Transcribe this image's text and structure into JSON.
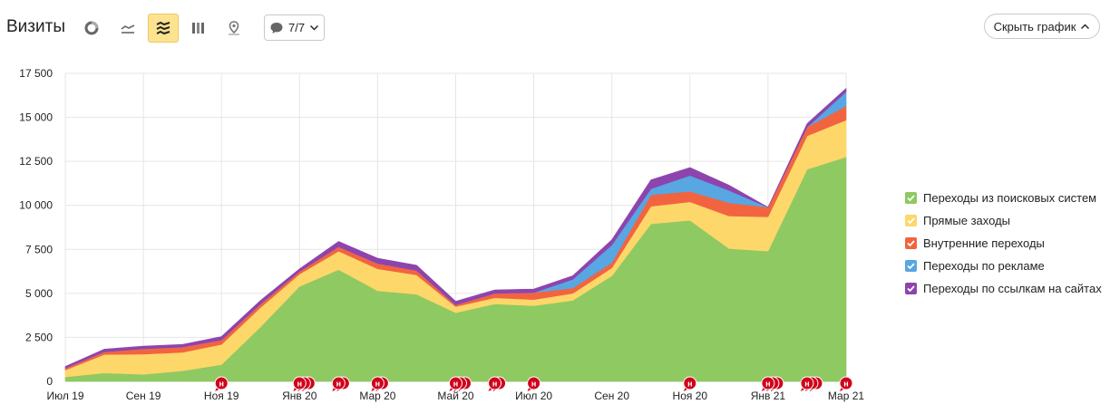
{
  "header": {
    "title": "Визиты",
    "counter_label": "7/7",
    "hide_label": "Скрыть график",
    "tools": [
      {
        "icon": "pie-chart-icon",
        "active": false
      },
      {
        "icon": "line-chart-icon",
        "active": false
      },
      {
        "icon": "area-chart-icon",
        "active": true
      },
      {
        "icon": "bar-chart-icon",
        "active": false
      },
      {
        "icon": "map-icon",
        "active": false
      }
    ]
  },
  "colors": {
    "accent_bg": "#fde28f",
    "grid": "#e6e6e6",
    "marker": "#d0021b"
  },
  "chart_data": {
    "type": "area",
    "stacked": true,
    "x": [
      "Июл 19",
      "Авг 19",
      "Сен 19",
      "Окт 19",
      "Ноя 19",
      "Дек 19",
      "Янв 20",
      "Фев 20",
      "Мар 20",
      "Апр 20",
      "Май 20",
      "Июн 20",
      "Июл 20",
      "Авг 20",
      "Сен 20",
      "Окт 20",
      "Ноя 20",
      "Дек 20",
      "Янв 21",
      "Фев 21",
      "Мар 21"
    ],
    "x_tick_labels": [
      "Июл 19",
      "Сен 19",
      "Ноя 19",
      "Янв 20",
      "Мар 20",
      "Май 20",
      "Июл 20",
      "Сен 20",
      "Ноя 20",
      "Янв 21",
      "Мар 21"
    ],
    "y_ticks": [
      0,
      2500,
      5000,
      7500,
      10000,
      12500,
      15000,
      17500
    ],
    "y_tick_labels": [
      "0",
      "2 500",
      "5 000",
      "7 500",
      "10 000",
      "12 500",
      "15 000",
      "17 500"
    ],
    "ylim": [
      0,
      17500
    ],
    "grid": true,
    "legend_position": "right",
    "series": [
      {
        "name": "Переходы из поисковых систем",
        "color": "#8fc962",
        "values": [
          250,
          480,
          400,
          600,
          950,
          3100,
          5400,
          6350,
          5150,
          4950,
          3900,
          4400,
          4300,
          4600,
          6000,
          8950,
          9150,
          7550,
          7400,
          12050,
          12750
        ]
      },
      {
        "name": "Прямые заходы",
        "color": "#fdd76a",
        "values": [
          400,
          1050,
          1150,
          1050,
          1150,
          1100,
          700,
          1050,
          1250,
          1100,
          350,
          350,
          350,
          400,
          450,
          1000,
          1050,
          1850,
          1950,
          1900,
          2100
        ]
      },
      {
        "name": "Внутренние переходы",
        "color": "#f26440",
        "values": [
          100,
          150,
          300,
          300,
          250,
          200,
          150,
          250,
          300,
          250,
          100,
          250,
          400,
          300,
          300,
          650,
          600,
          750,
          550,
          500,
          800
        ]
      },
      {
        "name": "Переходы по рекламе",
        "color": "#58a6e2",
        "values": [
          0,
          0,
          0,
          0,
          0,
          0,
          0,
          0,
          0,
          0,
          0,
          0,
          0,
          500,
          1000,
          350,
          900,
          700,
          0,
          0,
          800
        ]
      },
      {
        "name": "Переходы по ссылкам на сайтах",
        "color": "#8e44ad",
        "values": [
          100,
          150,
          150,
          150,
          200,
          200,
          150,
          300,
          300,
          300,
          200,
          200,
          200,
          200,
          300,
          500,
          450,
          300,
          0,
          200,
          200
        ]
      }
    ],
    "annotation_marker_label": "н",
    "annotation_markers": [
      {
        "x": "Ноя 19",
        "count": 1
      },
      {
        "x": "Янв 20",
        "count": 3
      },
      {
        "x": "Фев 20",
        "count": 2
      },
      {
        "x": "Мар 20",
        "count": 2
      },
      {
        "x": "Май 20",
        "count": 3
      },
      {
        "x": "Июн 20",
        "count": 2
      },
      {
        "x": "Июл 20",
        "count": 1
      },
      {
        "x": "Ноя 20",
        "count": 1
      },
      {
        "x": "Янв 21",
        "count": 3
      },
      {
        "x": "Фев 21",
        "count": 3
      },
      {
        "x": "Мар 21",
        "count": 1
      }
    ]
  }
}
